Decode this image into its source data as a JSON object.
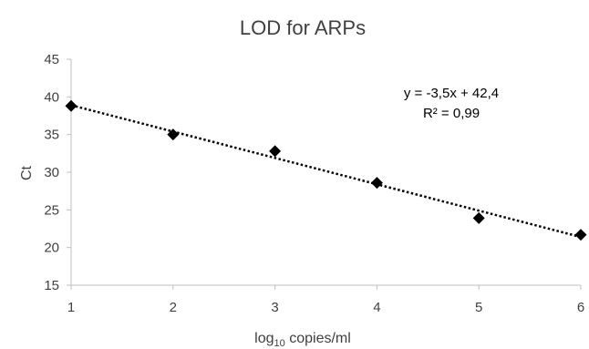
{
  "chart_data": {
    "type": "scatter",
    "title": "LOD for ARPs",
    "xlabel": {
      "prefix": "log",
      "subscript": "10",
      "suffix": " copies/ml"
    },
    "ylabel": "Ct",
    "xlim": [
      1,
      6
    ],
    "ylim": [
      15,
      45
    ],
    "xticks": [
      "1",
      "2",
      "3",
      "4",
      "5",
      "6"
    ],
    "yticks": [
      "15",
      "20",
      "25",
      "30",
      "35",
      "40",
      "45"
    ],
    "grid": false,
    "points": [
      {
        "x": 1,
        "y": 38.8
      },
      {
        "x": 2,
        "y": 35.0
      },
      {
        "x": 3,
        "y": 32.8
      },
      {
        "x": 4,
        "y": 28.6
      },
      {
        "x": 5,
        "y": 23.9
      },
      {
        "x": 6,
        "y": 21.7
      }
    ],
    "trendline": {
      "type": "linear",
      "slope": -3.5,
      "intercept": 42.4,
      "style": "dotted"
    },
    "annotations": [
      "y = -3,5x + 42,4",
      "R² = 0,99"
    ],
    "colors": {
      "points": "#000000",
      "trendline": "#000000",
      "axis": "#bfbfbf",
      "text": "#404040"
    }
  }
}
